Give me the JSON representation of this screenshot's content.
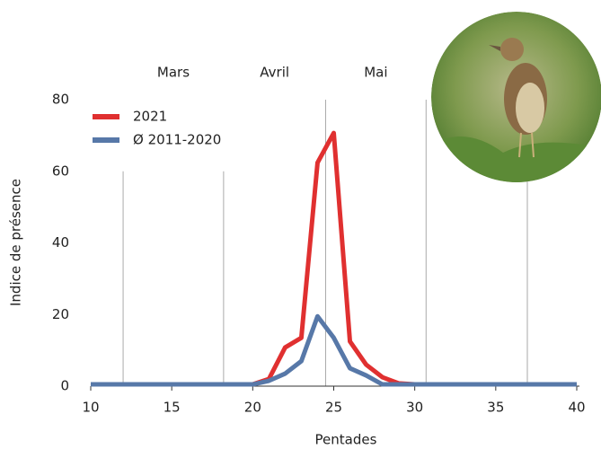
{
  "chart_data": {
    "type": "line",
    "x_label": "Pentades",
    "y_label": "Indice de présence",
    "x": [
      10,
      11,
      12,
      13,
      14,
      15,
      16,
      17,
      18,
      19,
      20,
      21,
      22,
      23,
      24,
      25,
      26,
      27,
      28,
      29,
      30,
      31,
      32,
      33,
      34,
      35,
      36,
      37,
      38,
      39,
      40
    ],
    "series": [
      {
        "name": "2021",
        "color": "#e03030",
        "values": [
          0.5,
          0.5,
          0.5,
          0.5,
          0.5,
          0.5,
          0.5,
          0.5,
          0.5,
          0.5,
          0.5,
          2,
          10.8,
          13.5,
          62.4,
          70.7,
          12.5,
          6,
          2.5,
          0.8,
          0.5,
          0.5,
          0.5,
          0.5,
          0.5,
          0.5,
          0.5,
          0.5,
          0.5,
          0.5,
          0.5
        ]
      },
      {
        "name": "Ø 2011-2020",
        "color": "#5778a8",
        "values": [
          0.5,
          0.5,
          0.5,
          0.5,
          0.5,
          0.5,
          0.5,
          0.5,
          0.5,
          0.5,
          0.5,
          1.5,
          3.5,
          7,
          19.5,
          13.5,
          5,
          3,
          0.5,
          0.5,
          0.5,
          0.5,
          0.5,
          0.5,
          0.5,
          0.5,
          0.5,
          0.5,
          0.5,
          0.5,
          0.5
        ]
      }
    ],
    "months": [
      "Mars",
      "Avril",
      "Mai"
    ],
    "month_lines": [
      12,
      18.2,
      24.5,
      30.7,
      36.95
    ],
    "xlim": [
      10,
      40
    ],
    "xticks": [
      10,
      15,
      20,
      25,
      30,
      35,
      40
    ],
    "ylim": [
      0,
      80
    ],
    "yticks": [
      0,
      20,
      40,
      60,
      80
    ],
    "legend": "upper left"
  }
}
